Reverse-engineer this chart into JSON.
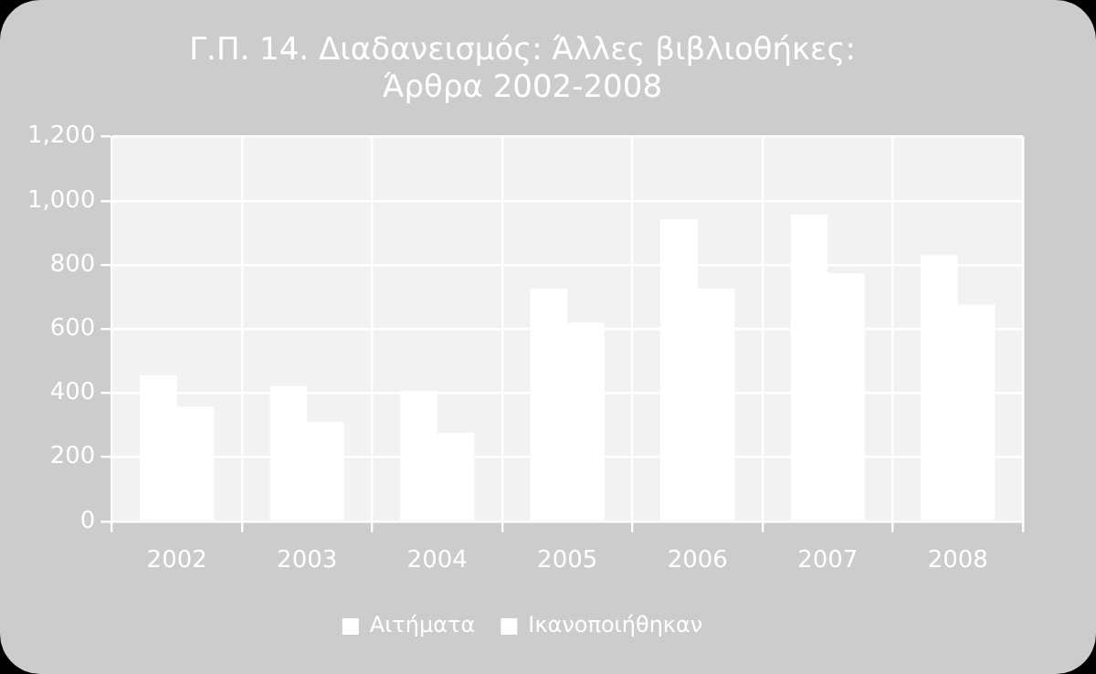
{
  "chart_data": {
    "type": "bar",
    "title": "Γ.Π. 14. Διαδανεισμός: Άλλες βιβλιοθήκες: Άρθρα 2002-2008",
    "categories": [
      "2002",
      "2003",
      "2004",
      "2005",
      "2006",
      "2007",
      "2008"
    ],
    "series": [
      {
        "name": "Αιτήματα",
        "color": "#ffffff",
        "values": [
          456,
          421,
          407,
          725,
          943,
          957,
          830
        ]
      },
      {
        "name": "Ικανοποιήθηκαν",
        "color": "#ffffff",
        "values": [
          358,
          311,
          276,
          620,
          725,
          774,
          676
        ]
      }
    ],
    "ylim": [
      0,
      1200
    ],
    "yticks": [
      {
        "value": 0,
        "label": "0"
      },
      {
        "value": 200,
        "label": "200"
      },
      {
        "value": 400,
        "label": "400"
      },
      {
        "value": 600,
        "label": "600"
      },
      {
        "value": 800,
        "label": "800"
      },
      {
        "value": 1000,
        "label": "1,000"
      },
      {
        "value": 1200,
        "label": "1,200"
      }
    ],
    "grid": true,
    "legend": "bottom"
  }
}
